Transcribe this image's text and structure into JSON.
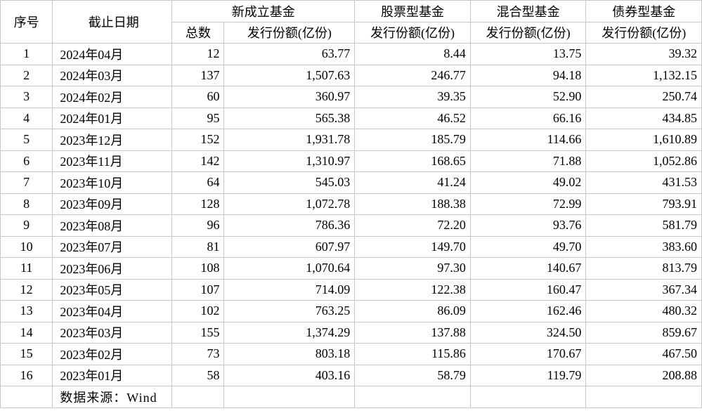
{
  "headers": {
    "seq": "序号",
    "date": "截止日期",
    "newFund": "新成立基金",
    "newFundCount": "总数",
    "newFundIssue": "发行份额(亿份)",
    "stockFund": "股票型基金",
    "stockFundIssue": "发行份额(亿份)",
    "mixedFund": "混合型基金",
    "mixedFundIssue": "发行份额(亿份)",
    "bondFund": "债券型基金",
    "bondFundIssue": "发行份额(亿份)"
  },
  "rows": [
    {
      "seq": "1",
      "date": "2024年04月",
      "count": "12",
      "issue": "63.77",
      "stock": "8.44",
      "mixed": "13.75",
      "bond": "39.32"
    },
    {
      "seq": "2",
      "date": "2024年03月",
      "count": "137",
      "issue": "1,507.63",
      "stock": "246.77",
      "mixed": "94.18",
      "bond": "1,132.15"
    },
    {
      "seq": "3",
      "date": "2024年02月",
      "count": "60",
      "issue": "360.97",
      "stock": "39.35",
      "mixed": "52.90",
      "bond": "250.74"
    },
    {
      "seq": "4",
      "date": "2024年01月",
      "count": "95",
      "issue": "565.38",
      "stock": "46.52",
      "mixed": "66.16",
      "bond": "434.85"
    },
    {
      "seq": "5",
      "date": "2023年12月",
      "count": "152",
      "issue": "1,931.78",
      "stock": "185.79",
      "mixed": "114.66",
      "bond": "1,610.89"
    },
    {
      "seq": "6",
      "date": "2023年11月",
      "count": "142",
      "issue": "1,310.97",
      "stock": "168.65",
      "mixed": "71.88",
      "bond": "1,052.86"
    },
    {
      "seq": "7",
      "date": "2023年10月",
      "count": "64",
      "issue": "545.03",
      "stock": "41.24",
      "mixed": "49.02",
      "bond": "431.53"
    },
    {
      "seq": "8",
      "date": "2023年09月",
      "count": "128",
      "issue": "1,072.78",
      "stock": "188.38",
      "mixed": "72.99",
      "bond": "793.91"
    },
    {
      "seq": "9",
      "date": "2023年08月",
      "count": "96",
      "issue": "786.36",
      "stock": "72.20",
      "mixed": "93.76",
      "bond": "581.79"
    },
    {
      "seq": "10",
      "date": "2023年07月",
      "count": "81",
      "issue": "607.97",
      "stock": "149.70",
      "mixed": "49.70",
      "bond": "383.60"
    },
    {
      "seq": "11",
      "date": "2023年06月",
      "count": "108",
      "issue": "1,070.64",
      "stock": "97.30",
      "mixed": "140.67",
      "bond": "813.79"
    },
    {
      "seq": "12",
      "date": "2023年05月",
      "count": "107",
      "issue": "714.09",
      "stock": "122.38",
      "mixed": "160.47",
      "bond": "367.34"
    },
    {
      "seq": "13",
      "date": "2023年04月",
      "count": "102",
      "issue": "763.25",
      "stock": "86.09",
      "mixed": "162.46",
      "bond": "480.32"
    },
    {
      "seq": "14",
      "date": "2023年03月",
      "count": "155",
      "issue": "1,374.29",
      "stock": "137.88",
      "mixed": "324.50",
      "bond": "859.67"
    },
    {
      "seq": "15",
      "date": "2023年02月",
      "count": "73",
      "issue": "803.18",
      "stock": "115.86",
      "mixed": "170.67",
      "bond": "467.50"
    },
    {
      "seq": "16",
      "date": "2023年01月",
      "count": "58",
      "issue": "403.16",
      "stock": "58.79",
      "mixed": "119.79",
      "bond": "208.88"
    }
  ],
  "source": "数据来源：Wind"
}
